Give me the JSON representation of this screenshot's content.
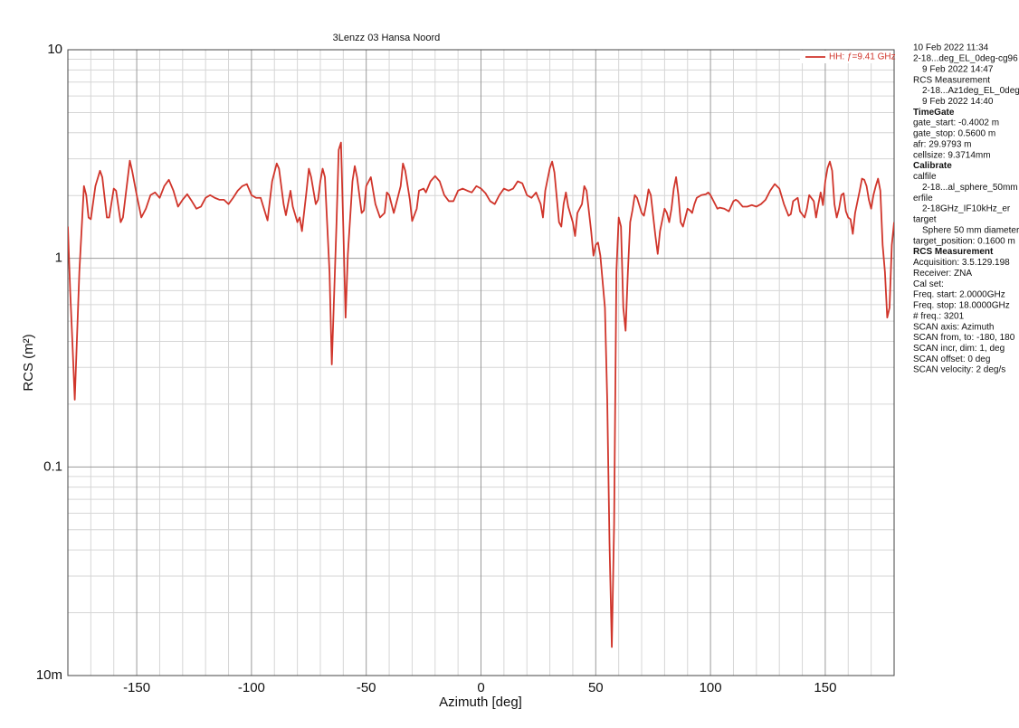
{
  "chart_data": {
    "type": "line",
    "title": "3Lenzz 03 Hansa Noord",
    "xlabel": "Azimuth [deg]",
    "ylabel": "RCS (m²)",
    "log_y": true,
    "grid": true,
    "legend_position": "upper right",
    "xlim": [
      -180,
      180
    ],
    "ylim": [
      0.01,
      10
    ],
    "xticks": [
      -150,
      -100,
      -50,
      0,
      50,
      100,
      150
    ],
    "xminorticks": [
      -170,
      -160,
      -140,
      -130,
      -120,
      -110,
      -90,
      -80,
      -70,
      -60,
      -40,
      -30,
      -20,
      -10,
      10,
      20,
      30,
      40,
      60,
      70,
      80,
      90,
      110,
      120,
      130,
      140,
      160,
      170
    ],
    "yticks": [
      {
        "value": 0.01,
        "label": "10m"
      },
      0.1,
      1,
      10
    ],
    "yminorticks": [
      0.02,
      0.03,
      0.04,
      0.05,
      0.06,
      0.07,
      0.08,
      0.09,
      0.2,
      0.3,
      0.4,
      0.5,
      0.6,
      0.7,
      0.8,
      0.9,
      2,
      3,
      4,
      5,
      6,
      7,
      8,
      9
    ],
    "x": [
      -180,
      -179,
      -178,
      -177,
      -175,
      -173,
      -172,
      -171,
      -170,
      -168,
      -166,
      -165,
      -163,
      -162,
      -160,
      -159,
      -157,
      -156,
      -153,
      -152,
      -150,
      -148,
      -146,
      -144,
      -142,
      -140,
      -138,
      -136,
      -134,
      -132,
      -130,
      -128,
      -126,
      -124,
      -122,
      -120,
      -118,
      -116,
      -114,
      -112,
      -110,
      -108,
      -106,
      -104,
      -102,
      -100,
      -98,
      -96,
      -94,
      -93,
      -91,
      -89,
      -88,
      -86,
      -85,
      -83,
      -82,
      -80,
      -79,
      -78,
      -76,
      -75,
      -74,
      -72,
      -71,
      -70,
      -69,
      -68,
      -66,
      -65,
      -63,
      -62,
      -61,
      -60,
      -59,
      -58,
      -56,
      -55,
      -54,
      -52,
      -51,
      -50,
      -48,
      -46,
      -44,
      -42,
      -41,
      -40,
      -38,
      -36,
      -35,
      -34,
      -33,
      -31,
      -30,
      -28,
      -27,
      -25,
      -24,
      -22,
      -20,
      -18,
      -16,
      -14,
      -12,
      -10,
      -8,
      -6,
      -4,
      -2,
      0,
      2,
      4,
      6,
      8,
      10,
      12,
      14,
      16,
      18,
      20,
      22,
      24,
      26,
      27,
      28,
      30,
      31,
      32,
      34,
      35,
      36,
      37,
      38,
      40,
      41,
      42,
      44,
      45,
      46,
      48,
      49,
      50,
      51,
      52,
      54,
      55,
      56,
      57,
      58,
      59,
      60,
      61,
      62,
      63,
      64,
      65,
      66,
      67,
      68,
      70,
      71,
      72,
      73,
      74,
      76,
      77,
      78,
      80,
      81,
      82,
      83,
      84,
      85,
      86,
      87,
      88,
      90,
      91,
      92,
      93,
      94,
      96,
      98,
      99,
      100,
      102,
      103,
      104,
      106,
      108,
      110,
      111,
      112,
      114,
      116,
      118,
      120,
      122,
      124,
      126,
      128,
      130,
      132,
      134,
      135,
      136,
      138,
      139,
      141,
      142,
      143,
      145,
      146,
      147,
      148,
      149,
      150,
      151,
      152,
      153,
      154,
      155,
      156,
      157,
      158,
      159,
      160,
      161,
      162,
      163,
      165,
      166,
      167,
      168,
      169,
      170,
      171,
      172,
      173,
      174,
      175,
      176,
      177,
      178,
      179,
      180
    ],
    "series": [
      {
        "name": "HH: ƒ=9.41 GHz",
        "color": "#d0352b",
        "values": [
          1.42,
          0.7,
          0.39,
          0.21,
          0.86,
          2.22,
          2.01,
          1.57,
          1.54,
          2.22,
          2.63,
          2.45,
          1.57,
          1.57,
          2.16,
          2.11,
          1.49,
          1.57,
          2.94,
          2.63,
          2.01,
          1.57,
          1.73,
          2.01,
          2.07,
          1.95,
          2.22,
          2.38,
          2.11,
          1.77,
          1.91,
          2.03,
          1.88,
          1.73,
          1.77,
          1.95,
          2.01,
          1.95,
          1.91,
          1.91,
          1.82,
          1.95,
          2.11,
          2.22,
          2.27,
          2.01,
          1.95,
          1.95,
          1.65,
          1.52,
          2.34,
          2.85,
          2.69,
          1.82,
          1.61,
          2.11,
          1.77,
          1.49,
          1.57,
          1.35,
          2.11,
          2.69,
          2.45,
          1.82,
          1.91,
          2.34,
          2.69,
          2.45,
          0.86,
          0.31,
          1.42,
          3.31,
          3.59,
          1.42,
          0.52,
          1.05,
          2.34,
          2.77,
          2.45,
          1.65,
          1.7,
          2.22,
          2.45,
          1.82,
          1.57,
          1.65,
          2.07,
          2.01,
          1.65,
          2.01,
          2.22,
          2.85,
          2.63,
          1.91,
          1.51,
          1.73,
          2.11,
          2.16,
          2.07,
          2.34,
          2.48,
          2.34,
          2.01,
          1.88,
          1.88,
          2.11,
          2.16,
          2.11,
          2.07,
          2.22,
          2.16,
          2.05,
          1.88,
          1.82,
          2.01,
          2.16,
          2.11,
          2.16,
          2.34,
          2.29,
          2.01,
          1.95,
          2.07,
          1.82,
          1.57,
          2.11,
          2.71,
          2.91,
          2.58,
          1.49,
          1.42,
          1.82,
          2.07,
          1.77,
          1.49,
          1.28,
          1.65,
          1.82,
          2.22,
          2.11,
          1.35,
          1.03,
          1.16,
          1.19,
          1.03,
          0.58,
          0.21,
          0.043,
          0.0137,
          0.053,
          0.86,
          1.57,
          1.42,
          0.58,
          0.45,
          0.86,
          1.49,
          1.7,
          2.01,
          1.95,
          1.65,
          1.6,
          1.82,
          2.14,
          2.01,
          1.28,
          1.05,
          1.35,
          1.73,
          1.65,
          1.49,
          1.73,
          2.16,
          2.45,
          2.01,
          1.49,
          1.42,
          1.73,
          1.7,
          1.65,
          1.82,
          1.95,
          2.01,
          2.03,
          2.07,
          2.01,
          1.82,
          1.73,
          1.75,
          1.73,
          1.68,
          1.88,
          1.91,
          1.88,
          1.77,
          1.77,
          1.8,
          1.77,
          1.82,
          1.91,
          2.11,
          2.27,
          2.16,
          1.82,
          1.6,
          1.63,
          1.88,
          1.95,
          1.68,
          1.57,
          1.73,
          2.01,
          1.88,
          1.57,
          1.82,
          2.07,
          1.8,
          2.34,
          2.71,
          2.91,
          2.63,
          1.82,
          1.57,
          1.73,
          2.01,
          2.05,
          1.68,
          1.57,
          1.54,
          1.31,
          1.65,
          2.11,
          2.41,
          2.38,
          2.22,
          1.91,
          1.73,
          2.01,
          2.22,
          2.41,
          2.11,
          1.16,
          0.86,
          0.52,
          0.58,
          1.16,
          1.49
        ]
      }
    ],
    "info_panel": [
      {
        "lines": [
          "10 Feb 2022 11:34",
          "2-18...deg_EL_0deg-cg96",
          [
            "9 Feb 2022 14:47"
          ],
          "RCS Measurement",
          [
            "2-18...Az1deg_EL_0deg",
            "9 Feb 2022 14:40"
          ]
        ]
      },
      {
        "heading": "TimeGate",
        "lines": [
          "gate_start: -0.4002 m",
          "gate_stop: 0.5600 m",
          "afr: 29.9793 m",
          "cellsize: 9.3714mm"
        ]
      },
      {
        "heading": "Calibrate",
        "lines": [
          "calfile",
          [
            "2-18...al_sphere_50mm"
          ],
          "erfile",
          [
            "2-18GHz_IF10kHz_er"
          ],
          "target",
          [
            "Sphere 50 mm diameter"
          ],
          "target_position: 0.1600 m"
        ]
      },
      {
        "heading": "RCS Measurement",
        "lines": [
          "Acquisition: 3.5.129.198",
          "Receiver: ZNA",
          "Cal set:",
          "Freq. start: 2.0000GHz",
          "Freq. stop: 18.0000GHz",
          "# freq.: 3201",
          "SCAN axis: Azimuth",
          "SCAN from, to: -180, 180",
          "SCAN incr, dim: 1, deg",
          "SCAN offset: 0 deg",
          "SCAN velocity: 2 deg/s"
        ]
      }
    ]
  }
}
